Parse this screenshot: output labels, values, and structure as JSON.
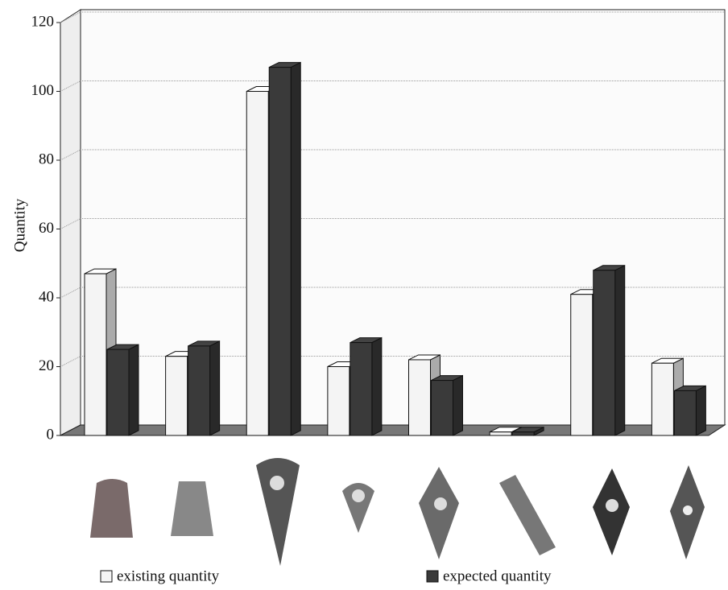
{
  "chart_data": {
    "type": "bar3d",
    "y_label": "Quantity",
    "categories": [
      null,
      null,
      null,
      null,
      null,
      null,
      null,
      null
    ],
    "series": [
      {
        "name": "existing quantity",
        "color": "#f4f4f4",
        "values": [
          47,
          23,
          100,
          20,
          22,
          1,
          41,
          21
        ]
      },
      {
        "name": "expected quantity",
        "color": "#3a3a3a",
        "values": [
          25,
          26,
          107,
          27,
          16,
          1,
          48,
          13
        ]
      }
    ],
    "ylim": [
      0,
      120
    ],
    "yticks": [
      0,
      20,
      40,
      60,
      80,
      100,
      120
    ],
    "grid": true
  }
}
